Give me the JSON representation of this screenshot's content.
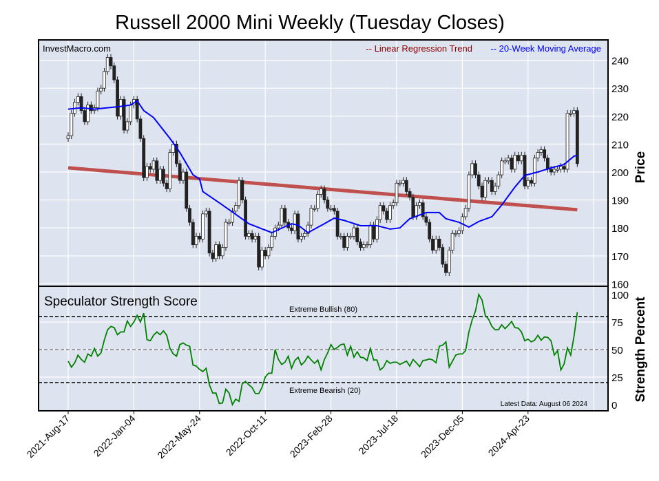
{
  "chart_data": [
    {
      "type": "candlestick",
      "title": "Russell 2000 Mini Weekly (Tuesday Closes)",
      "watermark": "InvestMacro.com",
      "ylabel": "Price",
      "ylim": [
        160,
        245
      ],
      "yticks": [
        160,
        170,
        180,
        190,
        200,
        210,
        220,
        230,
        240
      ],
      "grid": true,
      "legend": {
        "placement": "top-right",
        "entries": [
          {
            "label": "-- Linear Regression Trend",
            "color": "#8b0000"
          },
          {
            "label": "-- 20-Week Moving Average",
            "color": "#0000ff"
          }
        ]
      },
      "xticks": [
        {
          "week": 0,
          "label": "2021-Aug-17"
        },
        {
          "week": 20,
          "label": "2022-Jan-04"
        },
        {
          "week": 40,
          "label": "2022-May-24"
        },
        {
          "week": 60,
          "label": "2022-Oct-11"
        },
        {
          "week": 80,
          "label": "2023-Feb-28"
        },
        {
          "week": 100,
          "label": "2023-Jul-18"
        },
        {
          "week": 120,
          "label": "2023-Dec-05"
        },
        {
          "week": 140,
          "label": "2024-Apr-23"
        }
      ],
      "closes": [
        213,
        221,
        225,
        227,
        222,
        218,
        224,
        222,
        223,
        229,
        230,
        236,
        241,
        238,
        233,
        220,
        226,
        215,
        218,
        224,
        226,
        219,
        212,
        198,
        202,
        201,
        204,
        197,
        201,
        196,
        194,
        207,
        210,
        203,
        197,
        200,
        187,
        182,
        174,
        177,
        176,
        185,
        186,
        171,
        169,
        174,
        170,
        173,
        182,
        182,
        186,
        188,
        197,
        190,
        177,
        178,
        176,
        177,
        166,
        172,
        170,
        173,
        177,
        180,
        181,
        187,
        182,
        180,
        179,
        185,
        176,
        177,
        178,
        181,
        187,
        187,
        192,
        194,
        190,
        187,
        187,
        186,
        177,
        177,
        173,
        177,
        177,
        180,
        175,
        173,
        174,
        174,
        181,
        176,
        183,
        188,
        186,
        183,
        188,
        189,
        196,
        196,
        197,
        193,
        191,
        184,
        188,
        189,
        184,
        182,
        176,
        172,
        176,
        173,
        167,
        164,
        172,
        178,
        178,
        179,
        184,
        187,
        199,
        203,
        199,
        195,
        191,
        197,
        197,
        193,
        195,
        199,
        204,
        204,
        205,
        201,
        206,
        204,
        206,
        195,
        197,
        196,
        205,
        207,
        208,
        205,
        201,
        200,
        201,
        201,
        202,
        201,
        221,
        221,
        222,
        203
      ],
      "moving_average": {
        "name": "20-Week Moving Average",
        "color": "#0000ff",
        "points": [
          [
            0,
            222.5
          ],
          [
            4,
            223
          ],
          [
            8,
            222.5
          ],
          [
            12,
            223
          ],
          [
            16,
            223.5
          ],
          [
            19,
            224
          ],
          [
            21,
            225.5
          ],
          [
            23,
            222
          ],
          [
            26,
            219.5
          ],
          [
            31,
            212
          ],
          [
            34,
            207
          ],
          [
            38,
            199
          ],
          [
            40,
            197.5
          ],
          [
            41,
            193
          ],
          [
            46,
            189
          ],
          [
            50,
            185.7
          ],
          [
            55,
            181.5
          ],
          [
            62,
            178.3
          ],
          [
            68,
            181.5
          ],
          [
            70,
            181
          ],
          [
            73,
            178.3
          ],
          [
            78,
            181.5
          ],
          [
            81,
            183.5
          ],
          [
            84,
            182.7
          ],
          [
            89,
            180.8
          ],
          [
            94,
            180.8
          ],
          [
            98,
            179.6
          ],
          [
            101,
            180
          ],
          [
            104,
            183.3
          ],
          [
            109,
            185.5
          ],
          [
            113,
            185.5
          ],
          [
            115,
            183.3
          ],
          [
            119,
            182
          ],
          [
            122,
            180.3
          ],
          [
            125,
            182.3
          ],
          [
            129,
            184
          ],
          [
            132,
            188.2
          ],
          [
            136,
            194.6
          ],
          [
            139,
            198.8
          ],
          [
            143,
            200
          ],
          [
            147,
            201.5
          ],
          [
            151,
            202.7
          ],
          [
            154,
            205.7
          ],
          [
            155,
            206
          ]
        ]
      },
      "regression_trend": {
        "name": "Linear Regression Trend",
        "color": "#c0504d",
        "start": [
          0,
          201.5
        ],
        "end": [
          155,
          186.5
        ]
      }
    },
    {
      "type": "line",
      "title": "Speculator Strength Score",
      "ylabel": "Strength Percent",
      "ylim": [
        0,
        100
      ],
      "yticks": [
        0,
        25,
        50,
        75,
        100
      ],
      "grid": true,
      "color": "#008000",
      "reference_lines": [
        {
          "value": 80,
          "label": "Extreme Bullish (80)",
          "color": "#000000"
        },
        {
          "value": 50,
          "label": "",
          "color": "#808080"
        },
        {
          "value": 20,
          "label": "Extreme Bearish (20)",
          "color": "#000000"
        }
      ],
      "footnote": "Latest Data: August 06 2024",
      "values": [
        39.5,
        34,
        38,
        45,
        41,
        38.5,
        46,
        44,
        51,
        44,
        47,
        58.6,
        68,
        71,
        70,
        63.5,
        66,
        66,
        76,
        71,
        75,
        81,
        75,
        83,
        59,
        58,
        63,
        66,
        63.5,
        67,
        63,
        51,
        46,
        44,
        54.5,
        56,
        54,
        53,
        36,
        35,
        32,
        30,
        33,
        18,
        10.5,
        10.5,
        1,
        1.5,
        14,
        10.5,
        0,
        5,
        3,
        19,
        21,
        18,
        15.5,
        10,
        10,
        15.5,
        25,
        28.5,
        28.5,
        50,
        41,
        36.5,
        38.5,
        44,
        33,
        40,
        43,
        36,
        39,
        44,
        40.5,
        37.5,
        40.5,
        31.5,
        41,
        47,
        54.5,
        50,
        52,
        54.5,
        55,
        45,
        53,
        43,
        48,
        43,
        42.5,
        40,
        51,
        40.5,
        40.5,
        31.5,
        34,
        40,
        37.5,
        38.5,
        38.5,
        36.5,
        38,
        39.5,
        35,
        41,
        38,
        34.5,
        40,
        40.5,
        41.5,
        40.5,
        38,
        53,
        54,
        57,
        34,
        39.5,
        45,
        46,
        46,
        49,
        66,
        77,
        85,
        100,
        95,
        81,
        77.5,
        71,
        68,
        68,
        72.5,
        69,
        72,
        75.5,
        70,
        69.5,
        66,
        58,
        59.5,
        57,
        58.5,
        63,
        58.5,
        61.5,
        61,
        58,
        45,
        49,
        31.5,
        37,
        51.5,
        45,
        62,
        84
      ]
    }
  ]
}
